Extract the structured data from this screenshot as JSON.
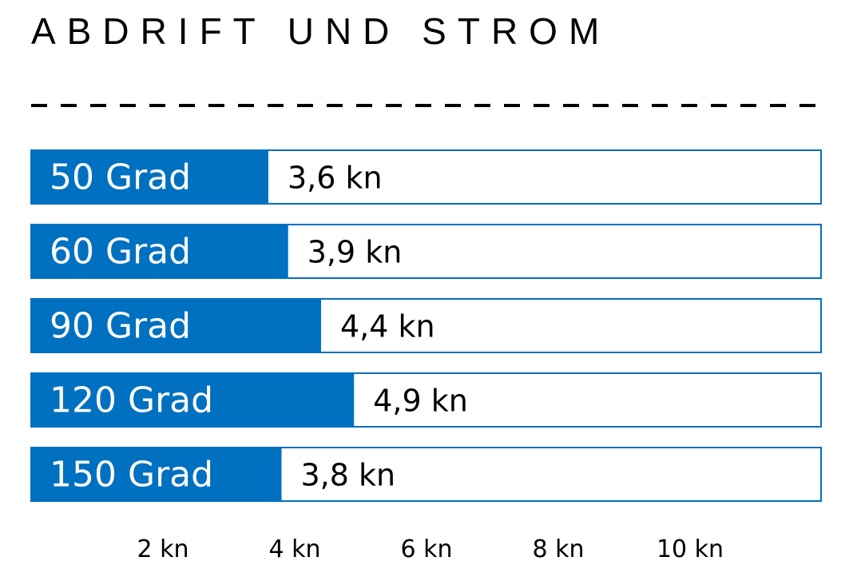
{
  "chart_data": {
    "type": "bar",
    "orientation": "horizontal",
    "title": "ABDRIFT UND STROM",
    "categories": [
      "50 Grad",
      "60 Grad",
      "90 Grad",
      "120 Grad",
      "150 Grad"
    ],
    "values": [
      3.6,
      3.9,
      4.4,
      4.9,
      3.8
    ],
    "value_labels": [
      "3,6 kn",
      "3,9 kn",
      "4,4 kn",
      "4,9 kn",
      "3,8 kn"
    ],
    "x_ticks": [
      2,
      4,
      6,
      8,
      10
    ],
    "x_tick_labels": [
      "2 kn",
      "4 kn",
      "6 kn",
      "8 kn",
      "10 kn"
    ],
    "xlim": [
      0,
      12
    ],
    "xlabel": "",
    "ylabel": "",
    "grid": false,
    "colors": {
      "bar": "#0070c0",
      "label_on_bar": "#ffffff",
      "value_text": "#000000"
    }
  }
}
